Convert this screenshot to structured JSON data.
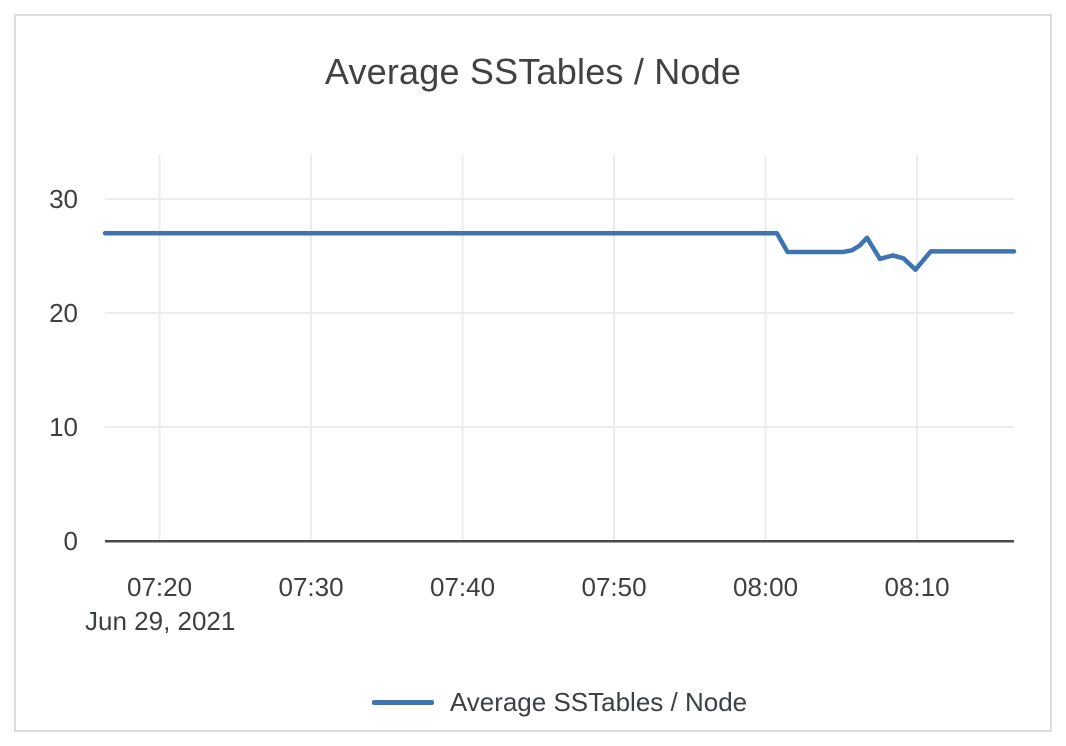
{
  "title": "Average SSTables / Node",
  "legend": {
    "label": "Average SSTables / Node"
  },
  "colors": {
    "line": "#3e74b1",
    "grid": "#ececec",
    "axis": "#4a4a4a",
    "text": "#3c4043",
    "title_text": "#424242",
    "border": "#dcdcdc",
    "background": "#ffffff"
  },
  "chart_data": {
    "type": "line",
    "title": "Average SSTables / Node",
    "grid": true,
    "legend_position": "bottom",
    "x_axis": {
      "date_label": "Jun 29, 2021",
      "tick_labels": [
        "07:20",
        "07:30",
        "07:40",
        "07:50",
        "08:00",
        "08:10"
      ],
      "tick_minutes_after_0700": [
        20,
        30,
        40,
        50,
        60,
        70
      ],
      "range_minutes_after_0700": [
        16.4,
        76.4
      ]
    },
    "y_axis": {
      "tick_labels": [
        "0",
        "10",
        "20",
        "30"
      ],
      "tick_values": [
        0,
        10,
        20,
        30
      ],
      "range": [
        0,
        33.86
      ]
    },
    "series": [
      {
        "name": "Average SSTables / Node",
        "color": "#3e74b1",
        "points_minutes_value": [
          [
            16.4,
            27
          ],
          [
            60.75,
            27
          ],
          [
            61.45,
            25.35
          ],
          [
            65.1,
            25.35
          ],
          [
            65.7,
            25.5
          ],
          [
            66.2,
            25.9
          ],
          [
            66.7,
            26.6
          ],
          [
            67.55,
            24.75
          ],
          [
            68.4,
            25.05
          ],
          [
            69.1,
            24.8
          ],
          [
            69.9,
            23.8
          ],
          [
            70.9,
            25.4
          ],
          [
            76.4,
            25.4
          ]
        ]
      }
    ]
  }
}
